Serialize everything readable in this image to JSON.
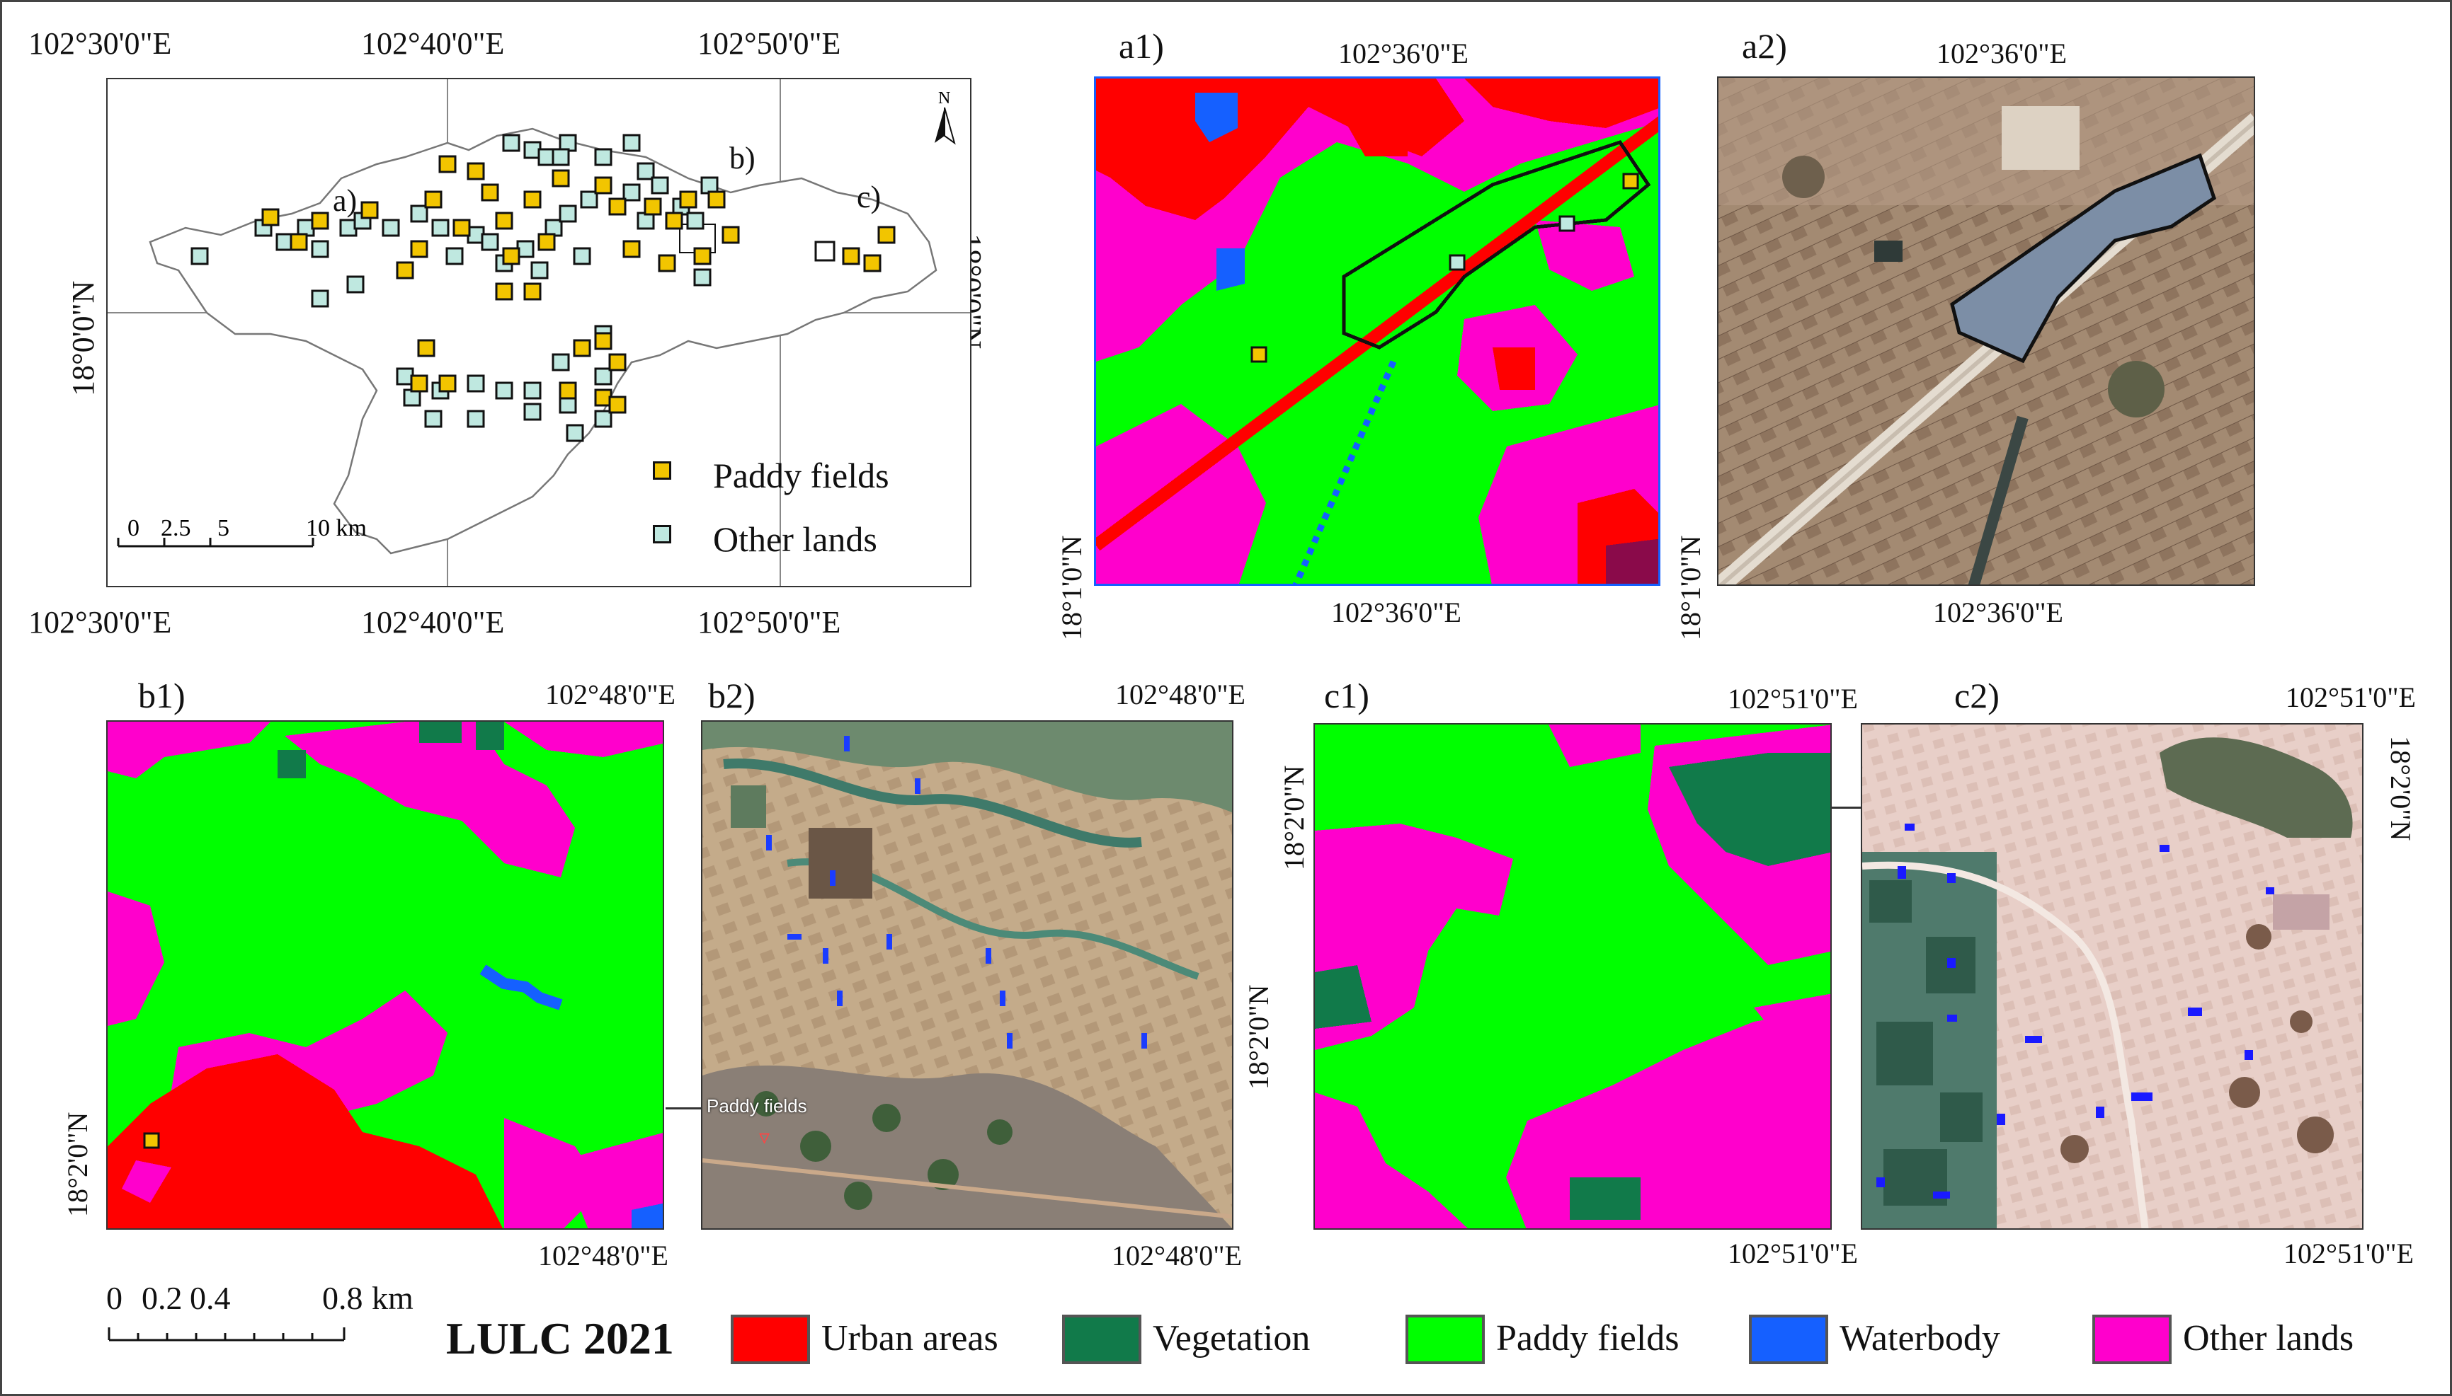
{
  "overview": {
    "top_ticks": [
      "102°30'0\"E",
      "102°40'0\"E",
      "102°50'0\"E"
    ],
    "bottom_ticks": [
      "102°30'0\"E",
      "102°40'0\"E",
      "102°50'0\"E"
    ],
    "left_tick": "18°0'0\"N",
    "right_tick": "18°0'0\"N",
    "north_symbol": "N",
    "site_labels": [
      "a)",
      "b)",
      "c)"
    ],
    "legend": [
      {
        "label": "Paddy fields",
        "color": "#f2c500"
      },
      {
        "label": "Other lands",
        "color": "#bfe8e0"
      }
    ],
    "scale_labels": [
      "0",
      "2.5",
      "5",
      "10 km"
    ]
  },
  "panels": {
    "a1": {
      "label": "a1)",
      "top_tick": "102°36'0\"E",
      "bottom_tick": "102°36'0\"E",
      "left_tick": "18°1'0\"N"
    },
    "a2": {
      "label": "a2)",
      "top_tick": "102°36'0\"E",
      "bottom_tick": "102°36'0\"E",
      "left_tick": "18°1'0\"N"
    },
    "b1": {
      "label": "b1)",
      "top_tick": "102°48'0\"E",
      "bottom_tick": "102°48'0\"E",
      "left_tick": "18°2'0\"N"
    },
    "b2": {
      "label": "b2)",
      "top_tick": "102°48'0\"E",
      "bottom_tick": "102°48'0\"E",
      "right_tick": "18°2'0\"N",
      "pin_label": "Paddy fields"
    },
    "c1": {
      "label": "c1)",
      "top_tick": "102°51'0\"E",
      "bottom_tick": "102°51'0\"E",
      "left_tick": "18°2'0\"N"
    },
    "c2": {
      "label": "c2)",
      "top_tick": "102°51'0\"E",
      "bottom_tick": "102°51'0\"E",
      "right_tick": "18°2'0\"N"
    }
  },
  "bottom_scale": {
    "labels": [
      "0",
      "0.2",
      "0.4",
      "0.8",
      "km"
    ]
  },
  "lulc_legend": {
    "title": "LULC 2021",
    "classes": [
      {
        "label": "Urban areas",
        "color": "#ff0000"
      },
      {
        "label": "Vegetation",
        "color": "#117a4a"
      },
      {
        "label": "Paddy fields",
        "color": "#00ff00"
      },
      {
        "label": "Waterbody",
        "color": "#1560ff"
      },
      {
        "label": "Other lands",
        "color": "#ff00cc"
      }
    ]
  }
}
